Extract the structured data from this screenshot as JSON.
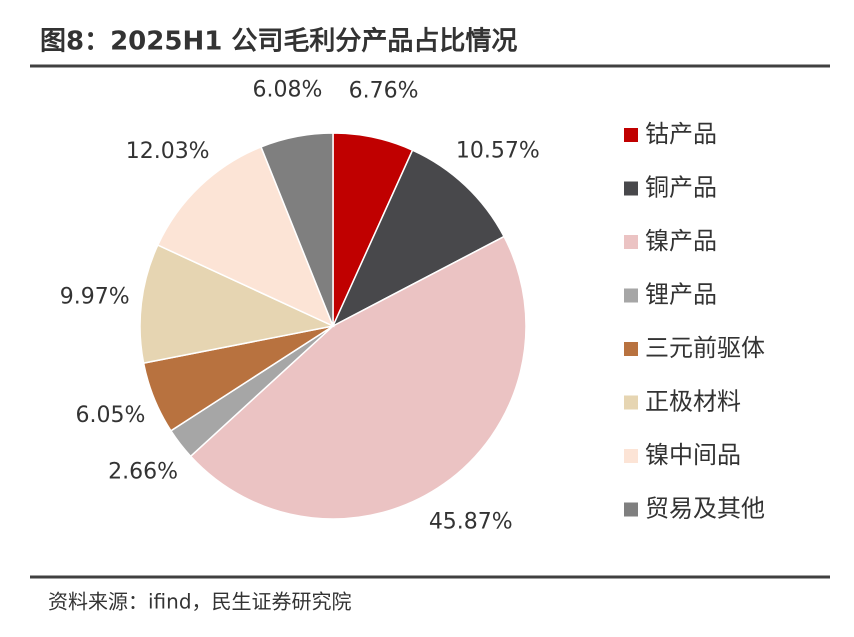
{
  "chart_data": {
    "type": "pie",
    "title": "图8：2025H1 公司毛利分产品占比情况",
    "source": "资料来源：ifind，民生证券研究院",
    "categories": [
      "钴产品",
      "铜产品",
      "镍产品",
      "锂产品",
      "三元前驱体",
      "正极材料",
      "镍中间品",
      "贸易及其他"
    ],
    "values": [
      6.76,
      10.57,
      45.87,
      2.66,
      6.05,
      9.97,
      12.03,
      6.08
    ],
    "value_labels": [
      "6.76%",
      "10.57%",
      "45.87%",
      "2.66%",
      "6.05%",
      "9.97%",
      "12.03%",
      "6.08%"
    ],
    "colors": [
      "#c00000",
      "#48484b",
      "#ebc3c3",
      "#a6a6a6",
      "#b8723f",
      "#e6d5b2",
      "#fce4d6",
      "#7f7f7f"
    ],
    "legend": "right"
  }
}
